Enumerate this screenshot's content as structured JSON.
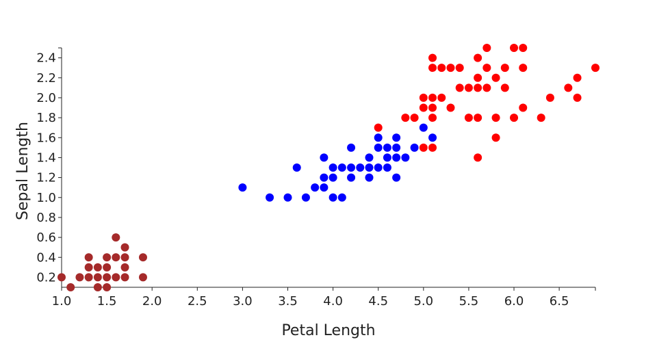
{
  "chart_data": {
    "type": "scatter",
    "title": "",
    "xlabel": "Petal Length",
    "ylabel": "Sepal Length",
    "xlim": [
      1.0,
      6.9
    ],
    "ylim": [
      0.1,
      2.5
    ],
    "x_ticks": [
      1.0,
      1.5,
      2.0,
      2.5,
      3.0,
      3.5,
      4.0,
      4.5,
      5.0,
      5.5,
      6.0,
      6.5
    ],
    "x_tick_labels": [
      "1.0",
      "1.5",
      "2.0",
      "2.5",
      "3.0",
      "3.5",
      "4.0",
      "4.5",
      "5.0",
      "5.5",
      "6.0",
      "6.5"
    ],
    "y_ticks": [
      0.2,
      0.4,
      0.6,
      0.8,
      1.0,
      1.2,
      1.4,
      1.6,
      1.8,
      2.0,
      2.2,
      2.4
    ],
    "y_tick_labels": [
      "0.2",
      "0.4",
      "0.6",
      "0.8",
      "1.0",
      "1.2",
      "1.4",
      "1.6",
      "1.8",
      "2.0",
      "2.2",
      "2.4"
    ],
    "grid": false,
    "legend": "none",
    "series": [
      {
        "color": "#a52a2a",
        "points": [
          [
            1.0,
            0.2
          ],
          [
            1.1,
            0.1
          ],
          [
            1.2,
            0.2
          ],
          [
            1.3,
            0.2
          ],
          [
            1.3,
            0.3
          ],
          [
            1.3,
            0.4
          ],
          [
            1.4,
            0.1
          ],
          [
            1.4,
            0.2
          ],
          [
            1.4,
            0.3
          ],
          [
            1.5,
            0.1
          ],
          [
            1.5,
            0.2
          ],
          [
            1.5,
            0.3
          ],
          [
            1.5,
            0.4
          ],
          [
            1.6,
            0.2
          ],
          [
            1.6,
            0.4
          ],
          [
            1.6,
            0.6
          ],
          [
            1.7,
            0.2
          ],
          [
            1.7,
            0.3
          ],
          [
            1.7,
            0.4
          ],
          [
            1.7,
            0.5
          ],
          [
            1.9,
            0.2
          ],
          [
            1.9,
            0.4
          ]
        ]
      },
      {
        "color": "#0000ff",
        "points": [
          [
            3.0,
            1.1
          ],
          [
            3.3,
            1.0
          ],
          [
            3.5,
            1.0
          ],
          [
            3.6,
            1.3
          ],
          [
            3.7,
            1.0
          ],
          [
            3.8,
            1.1
          ],
          [
            3.9,
            1.1
          ],
          [
            3.9,
            1.2
          ],
          [
            3.9,
            1.4
          ],
          [
            4.0,
            1.0
          ],
          [
            4.0,
            1.2
          ],
          [
            4.0,
            1.3
          ],
          [
            4.1,
            1.0
          ],
          [
            4.1,
            1.3
          ],
          [
            4.2,
            1.2
          ],
          [
            4.2,
            1.3
          ],
          [
            4.2,
            1.5
          ],
          [
            4.3,
            1.3
          ],
          [
            4.4,
            1.2
          ],
          [
            4.4,
            1.3
          ],
          [
            4.4,
            1.4
          ],
          [
            4.5,
            1.3
          ],
          [
            4.5,
            1.5
          ],
          [
            4.5,
            1.6
          ],
          [
            4.6,
            1.3
          ],
          [
            4.6,
            1.4
          ],
          [
            4.6,
            1.5
          ],
          [
            4.7,
            1.2
          ],
          [
            4.7,
            1.4
          ],
          [
            4.7,
            1.5
          ],
          [
            4.7,
            1.6
          ],
          [
            4.8,
            1.4
          ],
          [
            4.9,
            1.5
          ],
          [
            5.0,
            1.7
          ],
          [
            5.1,
            1.6
          ]
        ]
      },
      {
        "color": "#ff0000",
        "points": [
          [
            4.5,
            1.7
          ],
          [
            4.8,
            1.8
          ],
          [
            4.9,
            1.8
          ],
          [
            5.0,
            1.5
          ],
          [
            5.0,
            1.9
          ],
          [
            5.0,
            2.0
          ],
          [
            5.1,
            1.5
          ],
          [
            5.1,
            1.8
          ],
          [
            5.1,
            1.9
          ],
          [
            5.1,
            2.0
          ],
          [
            5.1,
            2.3
          ],
          [
            5.1,
            2.4
          ],
          [
            5.2,
            2.0
          ],
          [
            5.2,
            2.3
          ],
          [
            5.3,
            1.9
          ],
          [
            5.3,
            2.3
          ],
          [
            5.4,
            2.1
          ],
          [
            5.4,
            2.3
          ],
          [
            5.5,
            1.8
          ],
          [
            5.5,
            2.1
          ],
          [
            5.6,
            1.4
          ],
          [
            5.6,
            1.8
          ],
          [
            5.6,
            2.1
          ],
          [
            5.6,
            2.2
          ],
          [
            5.6,
            2.4
          ],
          [
            5.7,
            2.1
          ],
          [
            5.7,
            2.3
          ],
          [
            5.7,
            2.5
          ],
          [
            5.8,
            1.6
          ],
          [
            5.8,
            1.8
          ],
          [
            5.8,
            2.2
          ],
          [
            5.9,
            2.1
          ],
          [
            5.9,
            2.3
          ],
          [
            6.0,
            1.8
          ],
          [
            6.0,
            2.5
          ],
          [
            6.1,
            1.9
          ],
          [
            6.1,
            2.3
          ],
          [
            6.1,
            2.5
          ],
          [
            6.3,
            1.8
          ],
          [
            6.4,
            2.0
          ],
          [
            6.6,
            2.1
          ],
          [
            6.7,
            2.0
          ],
          [
            6.7,
            2.2
          ],
          [
            6.9,
            2.3
          ]
        ]
      }
    ]
  }
}
